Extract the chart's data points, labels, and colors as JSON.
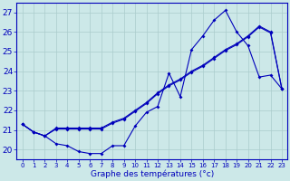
{
  "xlabel": "Graphe des températures (°c)",
  "hours": [
    0,
    1,
    2,
    3,
    4,
    5,
    6,
    7,
    8,
    9,
    10,
    11,
    12,
    13,
    14,
    15,
    16,
    17,
    18,
    19,
    20,
    21,
    22,
    23
  ],
  "s1_y": [
    21.3,
    20.9,
    20.7,
    20.3,
    20.2,
    19.9,
    19.8,
    19.8,
    20.2,
    20.2,
    21.2,
    21.9,
    22.2,
    23.9,
    22.7,
    25.1,
    25.8,
    26.6,
    27.1,
    26.0,
    25.3,
    23.7,
    23.8,
    23.1
  ],
  "s2_y": [
    21.3,
    20.9,
    20.7,
    21.1,
    21.1,
    21.1,
    21.1,
    21.1,
    21.4,
    21.6,
    22.0,
    22.4,
    22.9,
    23.3,
    23.6,
    24.0,
    24.3,
    24.7,
    25.1,
    25.4,
    25.8,
    26.3,
    26.0,
    23.1
  ],
  "s3_y": [
    21.3,
    20.9,
    20.7,
    21.05,
    21.05,
    21.05,
    21.05,
    21.05,
    21.35,
    21.55,
    21.95,
    22.35,
    22.85,
    23.25,
    23.55,
    23.95,
    24.25,
    24.65,
    25.05,
    25.35,
    25.75,
    26.25,
    25.95,
    23.1
  ],
  "ylim": [
    19.5,
    27.5
  ],
  "xlim": [
    -0.5,
    23.5
  ],
  "yticks": [
    20,
    21,
    22,
    23,
    24,
    25,
    26,
    27
  ],
  "xtick_labels": [
    "0",
    "1",
    "2",
    "3",
    "4",
    "5",
    "6",
    "7",
    "8",
    "9",
    "10",
    "11",
    "12",
    "13",
    "14",
    "15",
    "16",
    "17",
    "18",
    "19",
    "20",
    "21",
    "22",
    "23"
  ],
  "line_color": "#0000bb",
  "bg_color": "#cce8e8",
  "grid_color": "#aacccc",
  "marker_size": 2.0,
  "linewidth": 0.8,
  "ytick_fontsize": 6.5,
  "xtick_fontsize": 5.0,
  "xlabel_fontsize": 6.5
}
